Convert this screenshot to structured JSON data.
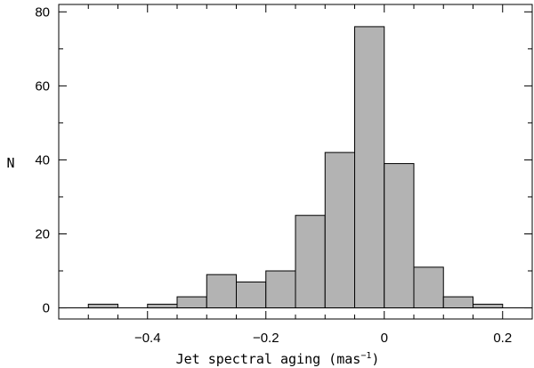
{
  "chart_data": {
    "type": "bar",
    "subtype": "histogram",
    "xlabel": "Jet spectral aging (mas",
    "xlabel_sup": "-1",
    "xlabel_close": ")",
    "ylabel": "N",
    "xlim": [
      -0.55,
      0.25
    ],
    "ylim": [
      -3,
      82
    ],
    "xticks": [
      -0.4,
      -0.2,
      0,
      0.2
    ],
    "xtick_labels": [
      "-0.4",
      "-0.2",
      "0",
      "0.2"
    ],
    "yticks": [
      0,
      20,
      40,
      60,
      80
    ],
    "ytick_labels": [
      "0",
      "20",
      "40",
      "60",
      "80"
    ],
    "bins": [
      {
        "x0": -0.5,
        "x1": -0.45,
        "value": 1
      },
      {
        "x0": -0.45,
        "x1": -0.4,
        "value": 0
      },
      {
        "x0": -0.4,
        "x1": -0.35,
        "value": 1
      },
      {
        "x0": -0.35,
        "x1": -0.3,
        "value": 3
      },
      {
        "x0": -0.3,
        "x1": -0.25,
        "value": 9
      },
      {
        "x0": -0.25,
        "x1": -0.2,
        "value": 7
      },
      {
        "x0": -0.2,
        "x1": -0.15,
        "value": 10
      },
      {
        "x0": -0.15,
        "x1": -0.1,
        "value": 25
      },
      {
        "x0": -0.1,
        "x1": -0.05,
        "value": 42
      },
      {
        "x0": -0.05,
        "x1": 0.0,
        "value": 76
      },
      {
        "x0": 0.0,
        "x1": 0.05,
        "value": 39
      },
      {
        "x0": 0.05,
        "x1": 0.1,
        "value": 11
      },
      {
        "x0": 0.1,
        "x1": 0.15,
        "value": 3
      },
      {
        "x0": 0.15,
        "x1": 0.2,
        "value": 1
      }
    ],
    "bar_color": "#b3b3b3",
    "edge_color": "#000000",
    "grid": false
  }
}
